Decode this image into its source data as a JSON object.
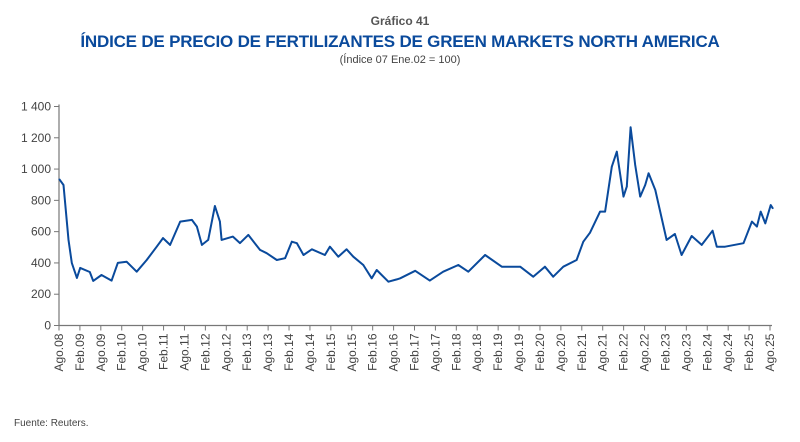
{
  "header": {
    "number": "Gráfico 41",
    "source": "Fuente: Reuters."
  },
  "chart_data": {
    "type": "line",
    "title": "ÍNDICE DE PRECIO DE FERTILIZANTES DE GREEN MARKETS NORTH AMERICA",
    "subtitle": "(Índice 07 Ene.02 = 100)",
    "xlabel": "",
    "ylabel": "",
    "ylim": [
      0,
      1400
    ],
    "yticks": [
      0,
      200,
      400,
      600,
      800,
      1000,
      1200,
      1400
    ],
    "ytick_labels": [
      "0",
      "200",
      "400",
      "600",
      "800",
      "1 000",
      "1 200",
      "1 400"
    ],
    "xlim": [
      2008.583,
      2025.583
    ],
    "xtick_labels": [
      "Ago.08",
      "Feb.09",
      "Ago.09",
      "Feb.10",
      "Ago.10",
      "Feb.11",
      "Ago.11",
      "Feb.12",
      "Ago.12",
      "Feb.13",
      "Ago.13",
      "Feb.14",
      "Ago.14",
      "Feb.15",
      "Ago.15",
      "Feb.16",
      "Ago.16",
      "Feb.17",
      "Ago.17",
      "Feb.18",
      "Ago.18",
      "Feb.19",
      "Ago.19",
      "Feb.20",
      "Ago.20",
      "Feb.21",
      "Ago.21",
      "Feb.22",
      "Ago.22",
      "Feb.23",
      "Ago.23",
      "Feb.24",
      "Ago.24",
      "Feb.25",
      "Ago.25"
    ],
    "grid": false,
    "color": "#0a4a9c",
    "series": [
      {
        "name": "Índice",
        "x": [
          2008.59,
          2008.69,
          2008.81,
          2008.89,
          2009.01,
          2009.09,
          2009.32,
          2009.4,
          2009.6,
          2009.84,
          2009.99,
          2010.2,
          2010.44,
          2010.68,
          2010.92,
          2011.07,
          2011.24,
          2011.48,
          2011.76,
          2011.88,
          2012.0,
          2012.15,
          2012.31,
          2012.43,
          2012.47,
          2012.74,
          2012.91,
          2013.11,
          2013.39,
          2013.55,
          2013.79,
          2013.99,
          2014.15,
          2014.27,
          2014.43,
          2014.63,
          2014.94,
          2015.06,
          2015.26,
          2015.46,
          2015.62,
          2015.86,
          2016.06,
          2016.18,
          2016.46,
          2016.66,
          2016.74,
          2017.1,
          2017.45,
          2017.77,
          2018.13,
          2018.37,
          2018.77,
          2019.17,
          2019.61,
          2019.92,
          2020.2,
          2020.4,
          2020.64,
          2020.96,
          2021.12,
          2021.28,
          2021.52,
          2021.64,
          2021.8,
          2021.92,
          2022.08,
          2022.16,
          2022.25,
          2022.36,
          2022.48,
          2022.6,
          2022.68,
          2022.84,
          2023.11,
          2023.31,
          2023.47,
          2023.71,
          2023.95,
          2024.21,
          2024.31,
          2024.51,
          2024.95,
          2025.15,
          2025.27,
          2025.36,
          2025.47,
          2025.6,
          2025.65
        ],
        "y": [
          935,
          898,
          547,
          400,
          304,
          368,
          342,
          285,
          323,
          287,
          400,
          408,
          344,
          419,
          504,
          559,
          515,
          664,
          675,
          632,
          515,
          547,
          764,
          664,
          547,
          568,
          527,
          579,
          483,
          462,
          419,
          430,
          536,
          526,
          451,
          487,
          451,
          504,
          440,
          487,
          440,
          387,
          302,
          355,
          280,
          295,
          302,
          350,
          287,
          344,
          387,
          344,
          451,
          376,
          376,
          312,
          376,
          312,
          376,
          419,
          536,
          593,
          728,
          728,
          1015,
          1111,
          824,
          888,
          1267,
          1026,
          824,
          898,
          973,
          866,
          547,
          585,
          451,
          572,
          515,
          606,
          504,
          504,
          526,
          664,
          632,
          728,
          653,
          770,
          749
        ]
      }
    ]
  }
}
